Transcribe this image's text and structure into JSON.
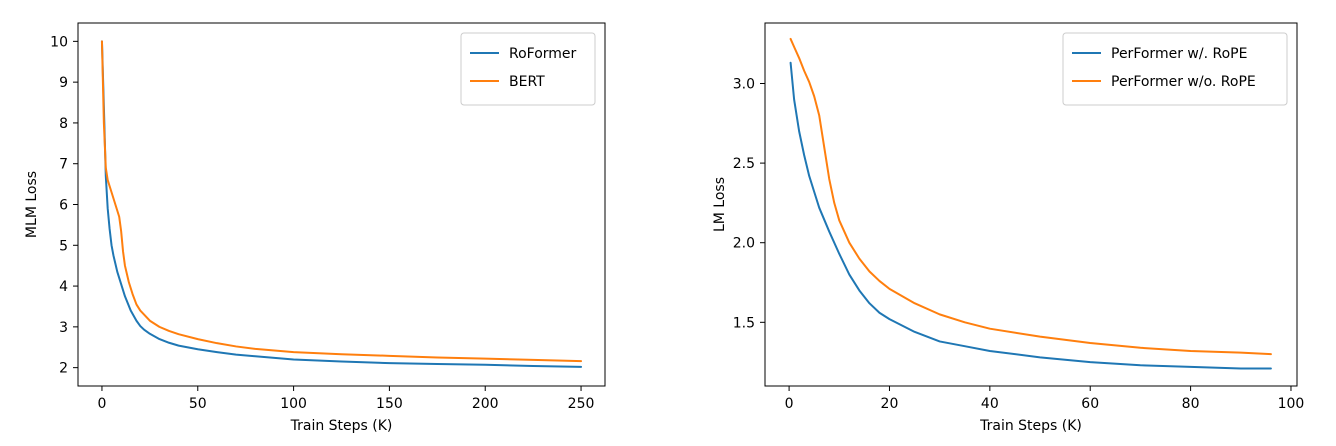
{
  "chart_data": [
    {
      "type": "line",
      "xlabel": "Train Steps (K)",
      "ylabel": "MLM Loss",
      "xlim": [
        -12.5,
        262.5
      ],
      "ylim": [
        1.55,
        10.45
      ],
      "xticks": [
        0,
        50,
        100,
        150,
        200,
        250
      ],
      "yticks": [
        2,
        3,
        4,
        5,
        6,
        7,
        8,
        9,
        10
      ],
      "grid": false,
      "legend": "top-right",
      "series": [
        {
          "name": "RoFormer",
          "color": "#1f77b4",
          "x": [
            0,
            1,
            2,
            3,
            4,
            5,
            6,
            7,
            8,
            10,
            12,
            15,
            18,
            20,
            22,
            25,
            30,
            35,
            40,
            50,
            60,
            70,
            80,
            90,
            100,
            125,
            150,
            175,
            200,
            225,
            250
          ],
          "y": [
            10.0,
            8.4,
            6.7,
            5.9,
            5.4,
            5.0,
            4.75,
            4.55,
            4.35,
            4.05,
            3.75,
            3.4,
            3.15,
            3.02,
            2.93,
            2.83,
            2.7,
            2.61,
            2.54,
            2.45,
            2.38,
            2.32,
            2.28,
            2.24,
            2.2,
            2.15,
            2.11,
            2.09,
            2.07,
            2.04,
            2.02
          ]
        },
        {
          "name": "BERT",
          "color": "#ff7f0e",
          "x": [
            0,
            1,
            2,
            3,
            5,
            7,
            9,
            10,
            11,
            12,
            14,
            16,
            18,
            20,
            25,
            30,
            35,
            40,
            50,
            60,
            70,
            80,
            90,
            100,
            125,
            150,
            175,
            200,
            225,
            250
          ],
          "y": [
            10.0,
            8.0,
            6.9,
            6.6,
            6.3,
            6.0,
            5.7,
            5.35,
            4.85,
            4.5,
            4.1,
            3.8,
            3.55,
            3.4,
            3.15,
            3.0,
            2.9,
            2.82,
            2.7,
            2.6,
            2.52,
            2.46,
            2.42,
            2.38,
            2.33,
            2.29,
            2.25,
            2.22,
            2.19,
            2.16
          ]
        }
      ]
    },
    {
      "type": "line",
      "xlabel": "Train Steps (K)",
      "ylabel": "LM Loss",
      "xlim": [
        -4.8,
        101.2
      ],
      "ylim": [
        1.1,
        3.38
      ],
      "xticks": [
        0,
        20,
        40,
        60,
        80,
        100
      ],
      "yticks": [
        1.5,
        2.0,
        2.5,
        3.0
      ],
      "grid": false,
      "legend": "top-right",
      "series": [
        {
          "name": "PerFormer w/. RoPE",
          "color": "#1f77b4",
          "x": [
            0.3,
            1,
            2,
            3,
            4,
            5,
            6,
            8,
            10,
            12,
            14,
            16,
            18,
            20,
            25,
            30,
            35,
            40,
            50,
            60,
            70,
            80,
            90,
            96
          ],
          "y": [
            3.13,
            2.9,
            2.7,
            2.55,
            2.42,
            2.32,
            2.22,
            2.07,
            1.93,
            1.8,
            1.7,
            1.62,
            1.56,
            1.52,
            1.44,
            1.38,
            1.35,
            1.32,
            1.28,
            1.25,
            1.23,
            1.22,
            1.21,
            1.21
          ]
        },
        {
          "name": "PerFormer w/o. RoPE",
          "color": "#ff7f0e",
          "x": [
            0.3,
            1,
            2,
            3,
            4,
            5,
            6,
            7,
            8,
            9,
            10,
            12,
            14,
            16,
            18,
            20,
            25,
            30,
            35,
            40,
            50,
            60,
            70,
            80,
            90,
            96
          ],
          "y": [
            3.28,
            3.23,
            3.16,
            3.08,
            3.01,
            2.92,
            2.8,
            2.6,
            2.4,
            2.25,
            2.14,
            2.0,
            1.9,
            1.82,
            1.76,
            1.71,
            1.62,
            1.55,
            1.5,
            1.46,
            1.41,
            1.37,
            1.34,
            1.32,
            1.31,
            1.3
          ]
        }
      ]
    }
  ]
}
